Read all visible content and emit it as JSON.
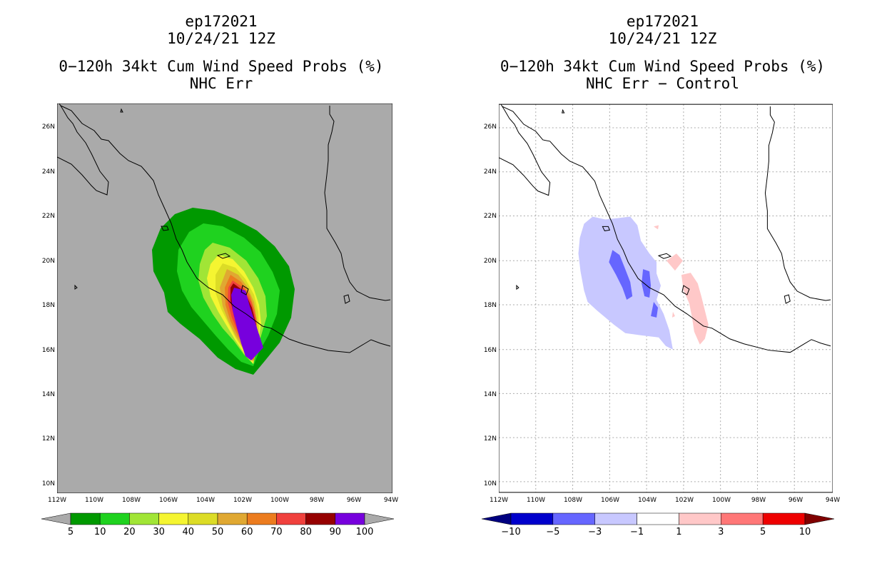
{
  "left": {
    "storm_id": "ep172021",
    "datetime": "10/24/21 12Z",
    "product": "0−120h 34kt Cum Wind Speed Probs (%)",
    "subtitle": "NHC Err",
    "colorbar": {
      "labels": [
        "5",
        "10",
        "20",
        "30",
        "40",
        "50",
        "60",
        "70",
        "80",
        "90",
        "100"
      ],
      "colors": [
        "#009900",
        "#1fd21f",
        "#a1e536",
        "#f5f531",
        "#dcdc26",
        "#e0a832",
        "#ec7c1f",
        "#f0413d",
        "#960000",
        "#7700dd"
      ],
      "arrow_low": "#aaaaaa",
      "arrow_high": "#aaaaaa"
    }
  },
  "right": {
    "storm_id": "ep172021",
    "datetime": "10/24/21 12Z",
    "product": "0−120h 34kt Cum Wind Speed Probs (%)",
    "subtitle": "NHC Err − Control",
    "colorbar": {
      "labels": [
        "−10",
        "−5",
        "−3",
        "−1",
        "1",
        "3",
        "5",
        "10"
      ],
      "colors": [
        "#0000cc",
        "#6666ff",
        "#c8c8ff",
        "#ffffff",
        "#ffc8c8",
        "#ff7777",
        "#ee0000"
      ],
      "arrow_low": "#000080",
      "arrow_high": "#800000"
    }
  },
  "map": {
    "lon_labels": [
      "112W",
      "110W",
      "108W",
      "106W",
      "104W",
      "102W",
      "100W",
      "98W",
      "96W",
      "94W"
    ],
    "lat_labels": [
      "26N",
      "24N",
      "22N",
      "20N",
      "18N",
      "16N",
      "14N",
      "12N",
      "10N"
    ],
    "land_ocean_mask_color": "#aaaaaa"
  }
}
